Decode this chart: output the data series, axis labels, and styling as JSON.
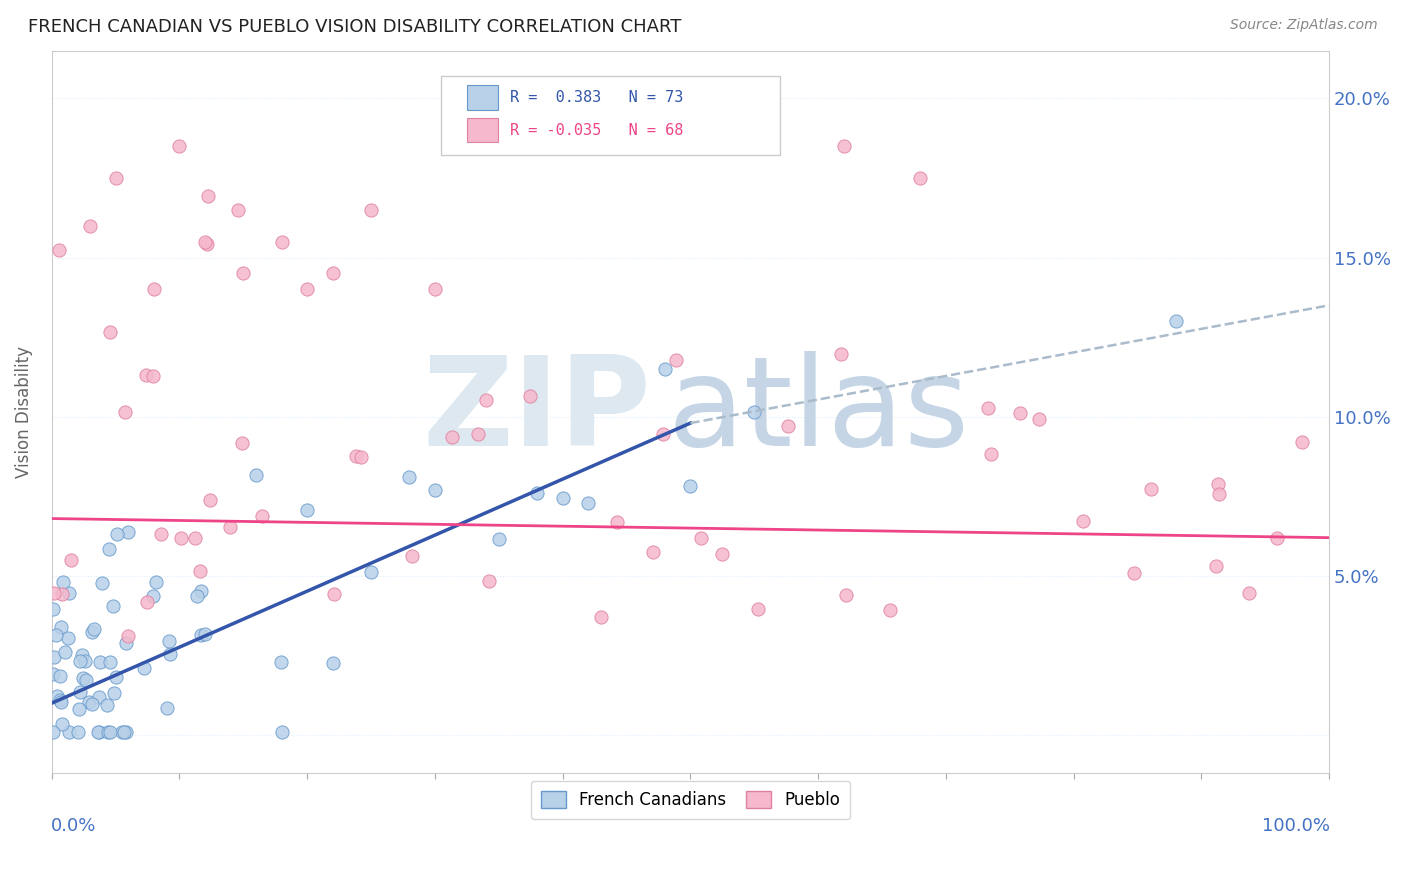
{
  "title": "FRENCH CANADIAN VS PUEBLO VISION DISABILITY CORRELATION CHART",
  "source": "Source: ZipAtlas.com",
  "ylabel": "Vision Disability",
  "xlim": [
    0,
    1.0
  ],
  "ylim": [
    -0.012,
    0.215
  ],
  "yticks": [
    0.0,
    0.05,
    0.1,
    0.15,
    0.2
  ],
  "color_blue": "#b8d0e8",
  "color_blue_edge": "#6699cc",
  "color_pink": "#f5b8cc",
  "color_pink_edge": "#e080a0",
  "color_line_blue": "#3355aa",
  "color_line_pink": "#ee4488",
  "color_dashed": "#aabbcc",
  "background_color": "#ffffff",
  "grid_color": "#ddeeff",
  "title_color": "#222222",
  "axis_label_color": "#4472c4",
  "ylabel_color": "#666666",
  "source_color": "#888888",
  "watermark_color1": "#ddeeff",
  "watermark_color2": "#c8d8e8",
  "fc_line_x0": 0.0,
  "fc_line_y0": 0.01,
  "fc_line_x1": 0.5,
  "fc_line_y1": 0.098,
  "pueblo_line_x0": 0.0,
  "pueblo_line_y0": 0.068,
  "pueblo_line_x1": 1.0,
  "pueblo_line_y1": 0.062,
  "dash_line_x0": 0.5,
  "dash_line_y0": 0.098,
  "dash_line_x1": 1.0,
  "dash_line_y1": 0.135
}
